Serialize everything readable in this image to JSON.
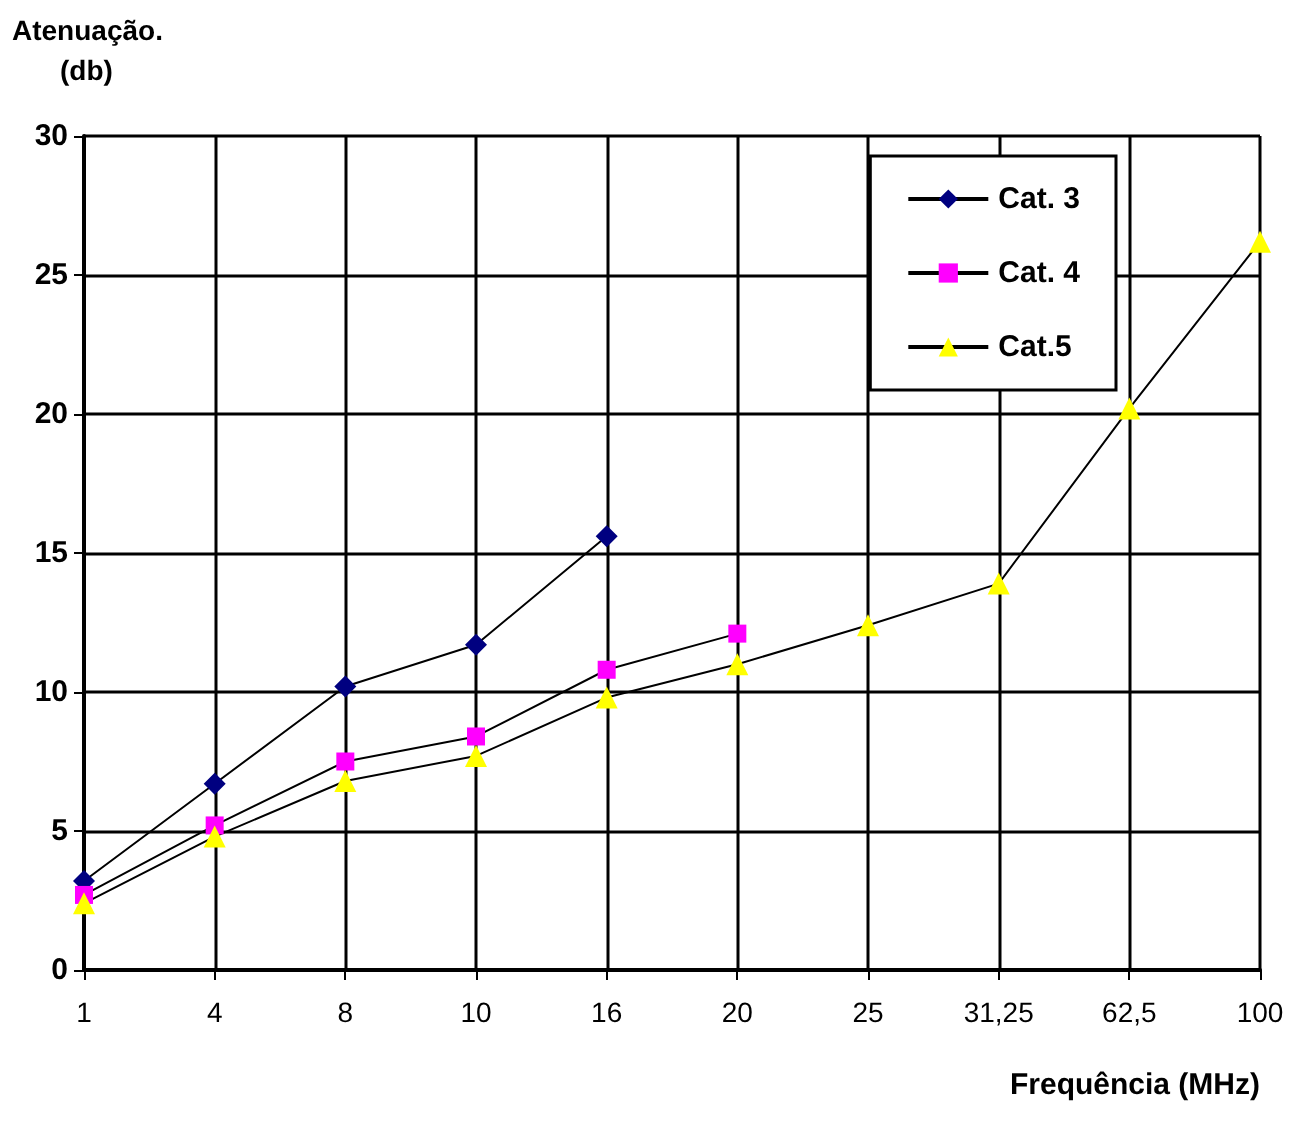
{
  "chart_data": {
    "type": "line",
    "ylabel": "Atenuação.\n(db)",
    "xlabel": "Frequência (MHz)",
    "categories": [
      "1",
      "4",
      "8",
      "10",
      "16",
      "20",
      "25",
      "31,25",
      "62,5",
      "100"
    ],
    "series": [
      {
        "name": "Cat. 3",
        "color": "#000080",
        "marker": "diamond",
        "values": [
          3.2,
          6.7,
          10.2,
          11.7,
          15.6,
          null,
          null,
          null,
          null,
          null
        ]
      },
      {
        "name": "Cat. 4",
        "color": "#ff00ff",
        "marker": "square",
        "values": [
          2.7,
          5.2,
          7.5,
          8.4,
          10.8,
          12.1,
          null,
          null,
          null,
          null
        ]
      },
      {
        "name": "Cat.5",
        "color": "#ffff00",
        "marker": "triangle",
        "values": [
          2.4,
          4.8,
          6.8,
          7.7,
          9.8,
          11.0,
          12.4,
          13.9,
          20.2,
          26.2
        ]
      }
    ],
    "ylim": [
      0,
      30
    ],
    "yticks": [
      0,
      5,
      10,
      15,
      20,
      25,
      30
    ],
    "grid": true,
    "legend": "top right"
  }
}
